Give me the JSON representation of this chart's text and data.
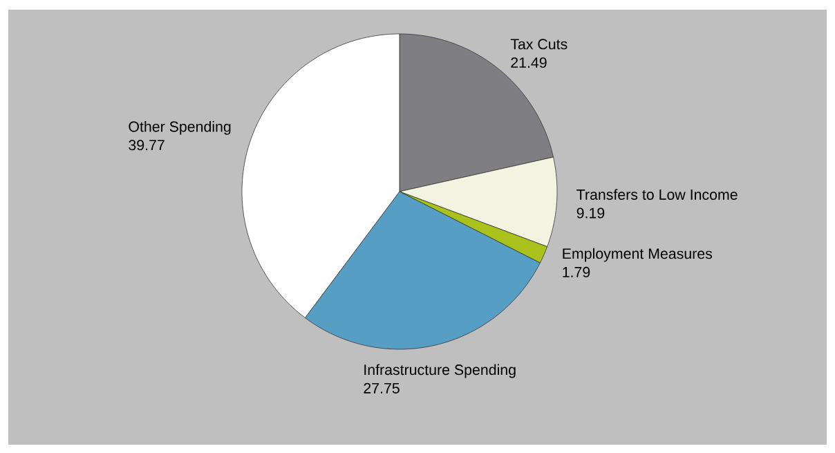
{
  "chart_data": {
    "type": "pie",
    "categories": [
      "Tax Cuts",
      "Transfers to Low Income",
      "Employment Measures",
      "Infrastructure Spending",
      "Other Spending"
    ],
    "values": [
      21.49,
      9.19,
      1.79,
      27.75,
      39.77
    ],
    "colors": [
      "#7f7e83",
      "#f3f3e1",
      "#a9c21c",
      "#579ec4",
      "#ffffff"
    ],
    "data_labels": true
  }
}
